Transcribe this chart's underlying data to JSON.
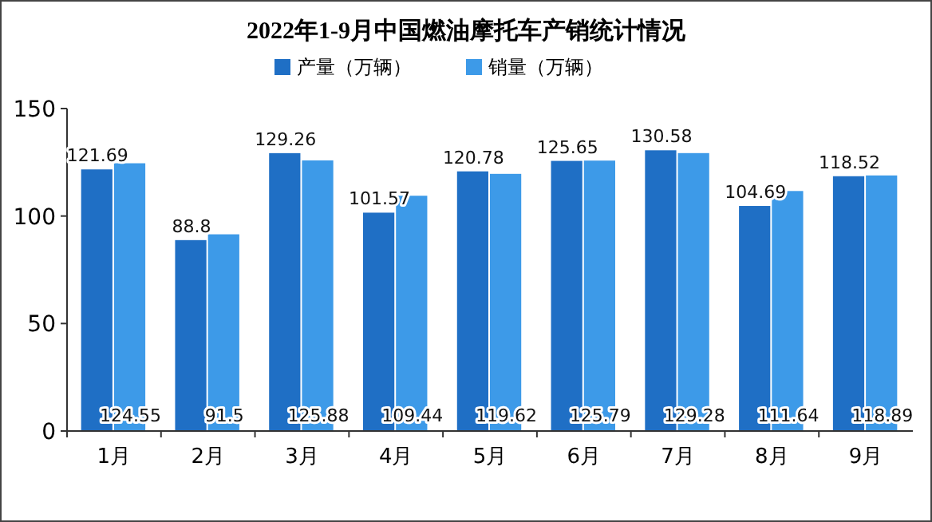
{
  "chart_data": {
    "type": "bar",
    "title": "2022年1-9月中国燃油摩托车产销统计情况",
    "categories": [
      "1月",
      "2月",
      "3月",
      "4月",
      "5月",
      "6月",
      "7月",
      "8月",
      "9月"
    ],
    "series": [
      {
        "name": "产量（万辆）",
        "color": "#1f6fc5",
        "values": [
          121.69,
          88.8,
          129.26,
          101.57,
          120.78,
          125.65,
          130.58,
          104.69,
          118.52
        ]
      },
      {
        "name": "销量（万辆）",
        "color": "#3d9ae8",
        "values": [
          124.55,
          91.5,
          125.88,
          109.44,
          119.62,
          125.79,
          129.28,
          111.64,
          118.89
        ]
      }
    ],
    "ylim": [
      0,
      150
    ],
    "yticks": [
      0,
      50,
      100,
      150
    ],
    "grid": false,
    "legend": "top",
    "data_labels": true
  }
}
